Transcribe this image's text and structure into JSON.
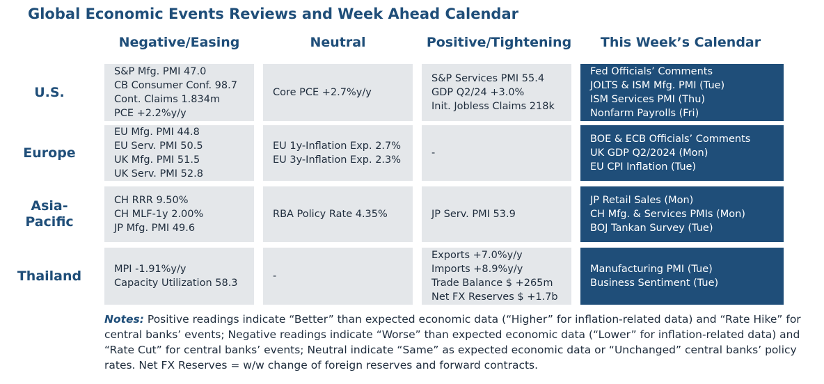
{
  "title": "Global Economic Events Reviews and Week Ahead Calendar",
  "columns": {
    "negative": "Negative/Easing",
    "neutral": "Neutral",
    "positive": "Positive/Tightening",
    "calendar": "This Week’s Calendar"
  },
  "rows": {
    "us": {
      "label": "U.S.",
      "negative": [
        "S&P Mfg. PMI 47.0",
        "CB Consumer Conf. 98.7",
        "Cont. Claims 1.834m",
        "PCE +2.2%y/y"
      ],
      "neutral": [
        "Core PCE +2.7%y/y"
      ],
      "positive": [
        "S&P Services PMI 55.4",
        "GDP Q2/24 +3.0%",
        "Init. Jobless Claims 218k"
      ],
      "calendar": [
        "Fed Officials’ Comments",
        "JOLTS & ISM Mfg. PMI (Tue)",
        "ISM Services PMI (Thu)",
        "Nonfarm Payrolls (Fri)"
      ]
    },
    "europe": {
      "label": "Europe",
      "negative": [
        "EU Mfg. PMI 44.8",
        "EU Serv. PMI 50.5",
        "UK Mfg. PMI 51.5",
        "UK Serv. PMI 52.8"
      ],
      "neutral": [
        "EU 1y-Inflation Exp. 2.7%",
        "EU 3y-Inflation Exp. 2.3%"
      ],
      "positive": [
        "-"
      ],
      "calendar": [
        "BOE & ECB Officials’ Comments",
        "UK GDP Q2/2024 (Mon)",
        "EU CPI Inflation (Tue)"
      ]
    },
    "asia": {
      "label_line1": "Asia-",
      "label_line2": "Pacific",
      "negative": [
        "CH RRR 9.50%",
        "CH MLF-1y 2.00%",
        "JP Mfg. PMI 49.6"
      ],
      "neutral": [
        "RBA Policy Rate 4.35%"
      ],
      "positive": [
        "JP Serv. PMI 53.9"
      ],
      "calendar": [
        "JP Retail Sales (Mon)",
        "CH Mfg. & Services PMIs (Mon)",
        "BOJ Tankan Survey (Tue)"
      ]
    },
    "thailand": {
      "label": "Thailand",
      "negative": [
        "MPI -1.91%y/y",
        "Capacity Utilization 58.3"
      ],
      "neutral": [
        "-"
      ],
      "positive": [
        "Exports +7.0%y/y",
        "Imports +8.9%y/y",
        "Trade Balance $ +265m",
        "Net FX Reserves $ +1.7b"
      ],
      "calendar": [
        "Manufacturing PMI (Tue)",
        "Business Sentiment (Tue)"
      ]
    }
  },
  "notes": {
    "label": "Notes:",
    "text": " Positive readings indicate “Better” than expected economic data (“Higher” for inflation-related data) and “Rate Hike” for central banks’ events; Negative readings indicate “Worse” than expected economic data (“Lower” for inflation-related data) and “Rate Cut” for central banks’ events; Neutral indicate “Same” as expected economic data or “Unchanged” central banks’ policy rates. Net FX Reserves = w/w change of foreign reserves and forward contracts."
  }
}
